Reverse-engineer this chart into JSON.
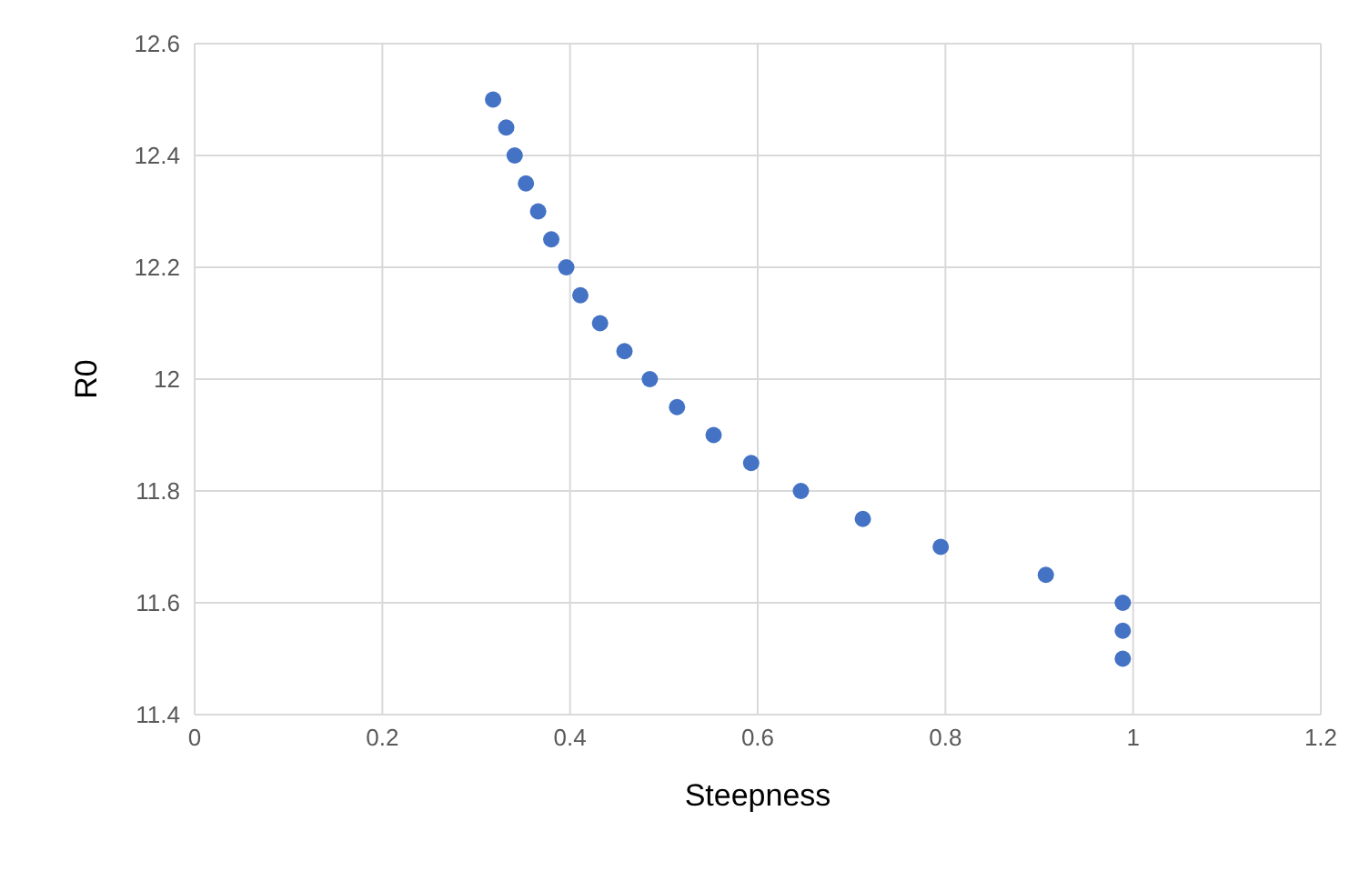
{
  "chart_data": {
    "type": "scatter",
    "xlabel": "Steepness",
    "ylabel": "R0",
    "x": [
      0.318,
      0.332,
      0.341,
      0.353,
      0.366,
      0.38,
      0.396,
      0.411,
      0.432,
      0.458,
      0.485,
      0.514,
      0.553,
      0.593,
      0.646,
      0.712,
      0.795,
      0.907,
      0.989,
      0.989,
      0.989
    ],
    "values": [
      12.5,
      12.45,
      12.4,
      12.35,
      12.3,
      12.25,
      12.2,
      12.15,
      12.1,
      12.05,
      12.0,
      11.95,
      11.9,
      11.85,
      11.8,
      11.75,
      11.7,
      11.65,
      11.6,
      11.55,
      11.5
    ],
    "color": "#4472c4",
    "marker": "circle",
    "xlim": [
      0,
      1.2
    ],
    "xticks": [
      0,
      0.2,
      0.4,
      0.6,
      0.8,
      1,
      1.2
    ],
    "ylim": [
      11.4,
      12.6
    ],
    "yticks": [
      11.4,
      11.6,
      11.8,
      12,
      12.2,
      12.4,
      12.6
    ],
    "grid": true
  }
}
